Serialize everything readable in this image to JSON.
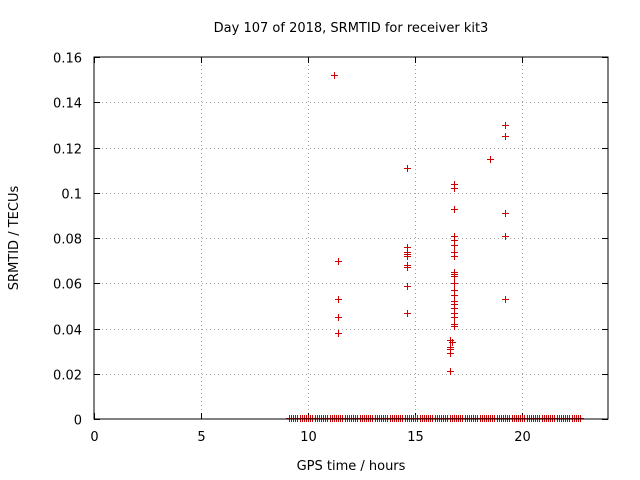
{
  "chart_data": {
    "type": "scatter",
    "title": "Day 107 of 2018, SRMTID for receiver kit3",
    "xlabel": "GPS time / hours",
    "ylabel": "SRMTID / TECUs",
    "xlim": [
      0,
      24
    ],
    "ylim": [
      0,
      0.16
    ],
    "x_ticks": [
      0,
      5,
      10,
      15,
      20
    ],
    "x_tick_labels": [
      "0",
      "5",
      "10",
      "15",
      "20"
    ],
    "y_ticks": [
      0,
      0.02,
      0.04,
      0.06,
      0.08,
      0.1,
      0.12,
      0.14,
      0.16
    ],
    "y_tick_labels": [
      "0",
      "0.02",
      "0.04",
      "0.06",
      "0.08",
      "0.1",
      "0.12",
      "0.14",
      "0.16"
    ],
    "grid": true,
    "marker": "+",
    "color": "#cc0000",
    "baseline_zero_range_hours": [
      9.1,
      22.7
    ],
    "baseline_zero_step_hours": 0.1,
    "series": [
      {
        "name": "SRMTID",
        "points": [
          [
            11.2,
            0.152
          ],
          [
            11.4,
            0.07
          ],
          [
            11.4,
            0.053
          ],
          [
            11.4,
            0.045
          ],
          [
            11.4,
            0.038
          ],
          [
            14.6,
            0.111
          ],
          [
            14.6,
            0.076
          ],
          [
            14.6,
            0.074
          ],
          [
            14.6,
            0.073
          ],
          [
            14.6,
            0.072
          ],
          [
            14.6,
            0.068
          ],
          [
            14.6,
            0.067
          ],
          [
            14.6,
            0.059
          ],
          [
            14.6,
            0.047
          ],
          [
            16.8,
            0.104
          ],
          [
            16.8,
            0.102
          ],
          [
            16.8,
            0.093
          ],
          [
            16.8,
            0.081
          ],
          [
            16.8,
            0.079
          ],
          [
            16.8,
            0.077
          ],
          [
            16.8,
            0.074
          ],
          [
            16.8,
            0.072
          ],
          [
            16.8,
            0.065
          ],
          [
            16.8,
            0.064
          ],
          [
            16.8,
            0.063
          ],
          [
            16.8,
            0.06
          ],
          [
            16.8,
            0.057
          ],
          [
            16.8,
            0.055
          ],
          [
            16.8,
            0.052
          ],
          [
            16.8,
            0.051
          ],
          [
            16.8,
            0.049
          ],
          [
            16.8,
            0.047
          ],
          [
            16.8,
            0.045
          ],
          [
            16.8,
            0.042
          ],
          [
            16.8,
            0.041
          ],
          [
            16.6,
            0.035
          ],
          [
            16.7,
            0.034
          ],
          [
            16.6,
            0.032
          ],
          [
            16.6,
            0.031
          ],
          [
            16.6,
            0.029
          ],
          [
            16.6,
            0.021
          ],
          [
            18.5,
            0.115
          ],
          [
            19.2,
            0.13
          ],
          [
            19.2,
            0.125
          ],
          [
            19.2,
            0.091
          ],
          [
            19.2,
            0.081
          ],
          [
            19.2,
            0.053
          ]
        ]
      }
    ]
  }
}
